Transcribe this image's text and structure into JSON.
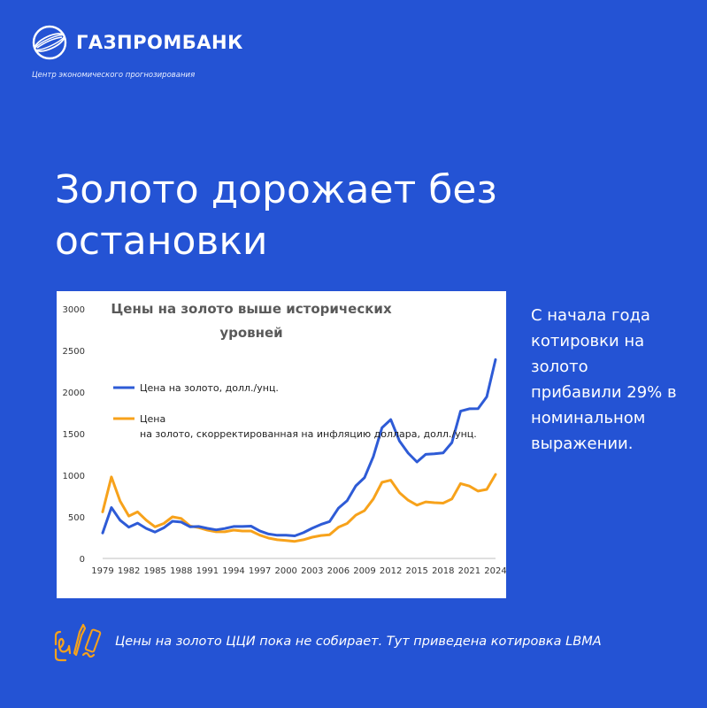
{
  "brand": {
    "name": "ГАЗПРОМБАНК",
    "subtitle": "Центр экономического прогнозирования",
    "logo_icon": "globe-logo-icon"
  },
  "headline": "Золото дорожает без остановки",
  "side_text": "С начала года котировки на золото прибавили 29% в номинальном выражении.",
  "footnote": {
    "icon": "handwriting-pen-icon",
    "text": "Цены на золото ЦЦИ пока не собирает. Тут приведена котировка LBMA"
  },
  "colors": {
    "background": "#2453d4",
    "series_nominal": "#2e5bd6",
    "series_real": "#f7a21b"
  },
  "chart_data": {
    "type": "line",
    "title": "Цены на золото выше исторических уровней",
    "ylim": [
      0,
      3000
    ],
    "yticks": [
      "0",
      "500",
      "1000",
      "1500",
      "2000",
      "2500",
      "3000"
    ],
    "xlim": [
      1979,
      2024
    ],
    "xticks": [
      "1979",
      "1982",
      "1985",
      "1988",
      "1991",
      "1994",
      "1997",
      "2000",
      "2003",
      "2006",
      "2009",
      "2012",
      "2015",
      "2018",
      "2021",
      "2024"
    ],
    "grid": false,
    "legend_position": "left",
    "x": [
      1979,
      1980,
      1981,
      1982,
      1983,
      1984,
      1985,
      1986,
      1987,
      1988,
      1989,
      1990,
      1991,
      1992,
      1993,
      1994,
      1995,
      1996,
      1997,
      1998,
      1999,
      2000,
      2001,
      2002,
      2003,
      2004,
      2005,
      2006,
      2007,
      2008,
      2009,
      2010,
      2011,
      2012,
      2013,
      2014,
      2015,
      2016,
      2017,
      2018,
      2019,
      2020,
      2021,
      2022,
      2023,
      2024
    ],
    "series": [
      {
        "name": "Цена на золото, долл./унц.",
        "color": "#2e5bd6",
        "values": [
          306,
          612,
          460,
          376,
          424,
          361,
          317,
          368,
          447,
          437,
          381,
          384,
          362,
          344,
          360,
          384,
          384,
          388,
          331,
          294,
          279,
          279,
          271,
          310,
          363,
          409,
          444,
          603,
          695,
          872,
          972,
          1225,
          1571,
          1669,
          1411,
          1266,
          1160,
          1251,
          1257,
          1268,
          1393,
          1770,
          1799,
          1800,
          1943,
          2390
        ]
      },
      {
        "name": "Цена на золото, скорректированная на инфляцию доллара, долл./унц.",
        "color": "#f7a21b",
        "values": [
          560,
          980,
          690,
          510,
          560,
          460,
          380,
          420,
          500,
          480,
          390,
          370,
          340,
          320,
          320,
          340,
          330,
          330,
          280,
          245,
          225,
          215,
          205,
          225,
          255,
          275,
          285,
          375,
          420,
          520,
          575,
          715,
          915,
          940,
          790,
          700,
          640,
          680,
          670,
          665,
          715,
          900,
          870,
          810,
          830,
          1010
        ]
      }
    ]
  }
}
